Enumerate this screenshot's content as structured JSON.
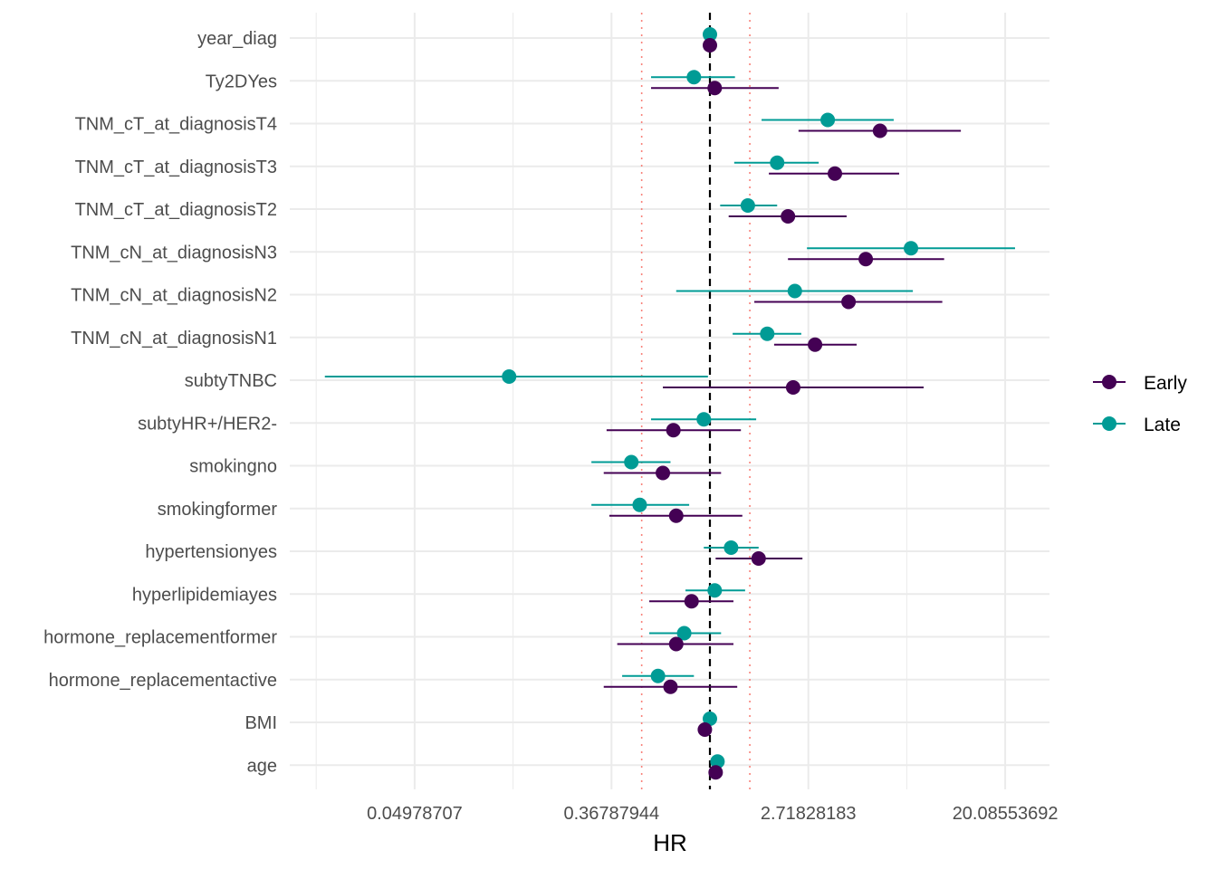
{
  "chart_data": {
    "type": "scatter",
    "subtype": "forest-plot",
    "title": "",
    "xlabel": "HR",
    "ylabel": "",
    "x_scale": "log",
    "x_ticks": [
      0.04978707,
      0.36787944,
      2.71828183,
      20.08553692
    ],
    "x_tick_labels": [
      "0.04978707",
      "0.36787944",
      "2.71828183",
      "20.08553692"
    ],
    "x_minor_ticks": [
      0.01831564,
      0.13533528,
      1.0,
      7.3890561
    ],
    "xlim": [
      0.0137,
      29.4
    ],
    "grid": true,
    "legend": {
      "position": "right",
      "entries": [
        {
          "name": "Early",
          "color": "#440154"
        },
        {
          "name": "Late",
          "color": "#009B95"
        }
      ]
    },
    "reference_lines": [
      {
        "value": 1.0,
        "style": "dashed",
        "color": "#000000"
      },
      {
        "value": 0.5,
        "style": "dotted",
        "color": "#F8766D"
      },
      {
        "value": 1.5,
        "style": "dotted",
        "color": "#F8766D"
      }
    ],
    "categories": [
      "year_diag",
      "Ty2DYes",
      "TNM_cT_at_diagnosisT4",
      "TNM_cT_at_diagnosisT3",
      "TNM_cT_at_diagnosisT2",
      "TNM_cN_at_diagnosisN3",
      "TNM_cN_at_diagnosisN2",
      "TNM_cN_at_diagnosisN1",
      "subtyTNBC",
      "subtyHR+/HER2-",
      "smokingno",
      "smokingformer",
      "hypertensionyes",
      "hyperlipidemiayes",
      "hormone_replacementformer",
      "hormone_replacementactive",
      "BMI",
      "age"
    ],
    "series": [
      {
        "name": "Early",
        "color": "#440154",
        "hr": [
          1.0,
          1.05,
          5.63,
          3.56,
          2.21,
          4.87,
          4.09,
          2.91,
          2.33,
          0.69,
          0.62,
          0.71,
          1.64,
          0.83,
          0.71,
          0.67,
          0.95,
          1.06
        ],
        "lower": [
          1.0,
          0.55,
          2.46,
          1.82,
          1.21,
          2.21,
          1.57,
          1.92,
          0.62,
          0.35,
          0.34,
          0.36,
          1.06,
          0.54,
          0.39,
          0.34,
          0.95,
          1.06
        ],
        "upper": [
          1.0,
          2.01,
          12.8,
          6.84,
          4.01,
          10.8,
          10.6,
          4.44,
          8.77,
          1.37,
          1.12,
          1.39,
          2.56,
          1.27,
          1.27,
          1.32,
          0.95,
          1.06
        ]
      },
      {
        "name": "Late",
        "color": "#009B95",
        "hr": [
          1.0,
          0.85,
          3.31,
          1.98,
          1.47,
          7.71,
          2.37,
          1.79,
          0.13,
          0.94,
          0.45,
          0.49,
          1.24,
          1.05,
          0.77,
          0.59,
          1.0,
          1.08
        ],
        "lower": [
          1.0,
          0.55,
          1.69,
          1.28,
          1.11,
          2.68,
          0.71,
          1.26,
          0.02,
          0.55,
          0.3,
          0.3,
          0.94,
          0.78,
          0.54,
          0.41,
          1.0,
          1.08
        ],
        "upper": [
          1.0,
          1.29,
          6.47,
          3.02,
          1.98,
          22.2,
          7.86,
          2.53,
          0.98,
          1.6,
          0.67,
          0.81,
          1.64,
          1.43,
          1.12,
          0.85,
          1.0,
          1.08
        ]
      }
    ]
  }
}
